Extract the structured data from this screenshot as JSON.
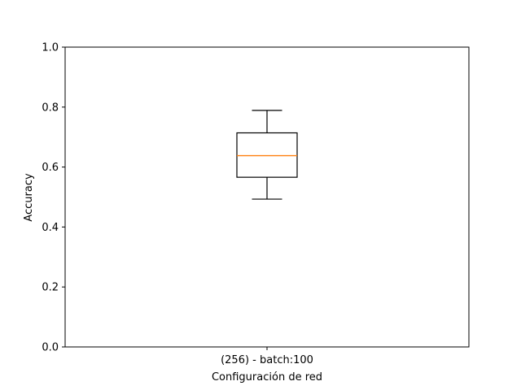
{
  "chart_data": {
    "type": "box",
    "title": "",
    "xlabel": "Configuración de red",
    "ylabel": "Accuracy",
    "ylim": [
      0,
      1
    ],
    "yticks": [
      0.0,
      0.2,
      0.4,
      0.6,
      0.8,
      1.0
    ],
    "ytick_labels": [
      "0.0",
      "0.2",
      "0.4",
      "0.6",
      "0.8",
      "1.0"
    ],
    "categories": [
      "(256) - batch:100"
    ],
    "boxes": [
      {
        "category": "(256) - batch:100",
        "whisker_low": 0.493,
        "q1": 0.566,
        "median": 0.638,
        "q3": 0.714,
        "whisker_high": 0.789
      }
    ],
    "grid": false,
    "colors": {
      "box": "#000000",
      "median": "#ff7f0e",
      "whisker": "#000000"
    }
  }
}
